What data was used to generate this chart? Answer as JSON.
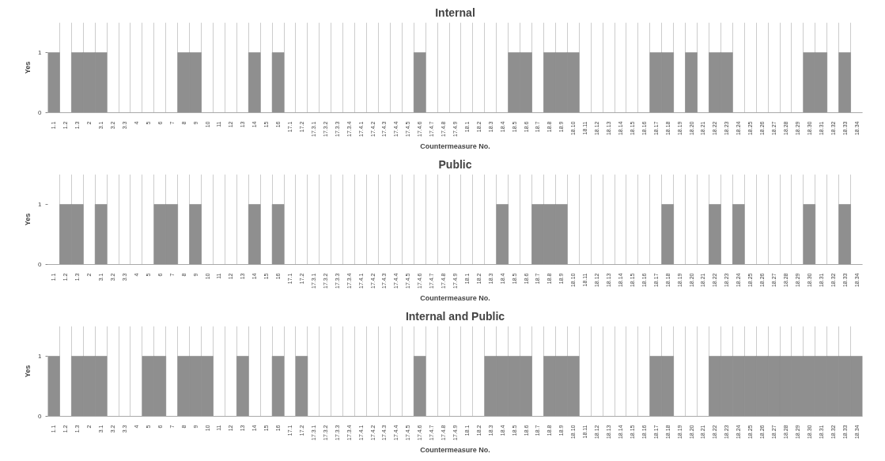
{
  "chart_data": [
    {
      "type": "bar",
      "title": "Internal",
      "xlabel": "Countermeasure No.",
      "ylabel": "Yes",
      "color": "#8f8f8f",
      "ylim": [
        0,
        1.5
      ],
      "yticks": [
        0,
        1
      ],
      "grid": "x",
      "categories": [
        "1.1",
        "1.2",
        "1.3",
        "2",
        "3.1",
        "3.2",
        "3.3",
        "4",
        "5",
        "6",
        "7",
        "8",
        "9",
        "10",
        "11",
        "12",
        "13",
        "14",
        "15",
        "16",
        "17.1",
        "17.2",
        "17.3.1",
        "17.3.2",
        "17.3.3",
        "17.3.4",
        "17.4.1",
        "17.4.2",
        "17.4.3",
        "17.4.4",
        "17.4.5",
        "17.4.6",
        "17.4.7",
        "17.4.8",
        "17.4.9",
        "18.1",
        "18.2",
        "18.3",
        "18.4",
        "18.5",
        "18.6",
        "18.7",
        "18.8",
        "18.9",
        "18.10",
        "18.11",
        "18.12",
        "18.13",
        "18.14",
        "18.15",
        "18.16",
        "18.17",
        "18.18",
        "18.19",
        "18.20",
        "18.21",
        "18.22",
        "18.23",
        "18.24",
        "18.25",
        "18.26",
        "18.27",
        "18.28",
        "18.29",
        "18.30",
        "18.31",
        "18.32",
        "18.33",
        "18.34"
      ],
      "values": [
        1,
        0,
        1,
        1,
        1,
        0,
        0,
        0,
        0,
        0,
        0,
        1,
        1,
        0,
        0,
        0,
        0,
        1,
        0,
        1,
        0,
        0,
        0,
        0,
        0,
        0,
        0,
        0,
        0,
        0,
        0,
        1,
        0,
        0,
        0,
        0,
        0,
        0,
        0,
        1,
        1,
        0,
        1,
        1,
        1,
        0,
        0,
        0,
        0,
        0,
        0,
        1,
        1,
        0,
        1,
        0,
        1,
        1,
        0,
        0,
        0,
        0,
        0,
        0,
        1,
        1,
        0,
        1,
        0
      ]
    },
    {
      "type": "bar",
      "title": "Public",
      "xlabel": "Countermeasure No.",
      "ylabel": "Yes",
      "color": "#8f8f8f",
      "ylim": [
        0,
        1.5
      ],
      "yticks": [
        0,
        1
      ],
      "grid": "x",
      "categories": [
        "1.1",
        "1.2",
        "1.3",
        "2",
        "3.1",
        "3.2",
        "3.3",
        "4",
        "5",
        "6",
        "7",
        "8",
        "9",
        "10",
        "11",
        "12",
        "13",
        "14",
        "15",
        "16",
        "17.1",
        "17.2",
        "17.3.1",
        "17.3.2",
        "17.3.3",
        "17.3.4",
        "17.4.1",
        "17.4.2",
        "17.4.3",
        "17.4.4",
        "17.4.5",
        "17.4.6",
        "17.4.7",
        "17.4.8",
        "17.4.9",
        "18.1",
        "18.2",
        "18.3",
        "18.4",
        "18.5",
        "18.6",
        "18.7",
        "18.8",
        "18.9",
        "18.10",
        "18.11",
        "18.12",
        "18.13",
        "18.14",
        "18.15",
        "18.16",
        "18.17",
        "18.18",
        "18.19",
        "18.20",
        "18.21",
        "18.22",
        "18.23",
        "18.24",
        "18.25",
        "18.26",
        "18.27",
        "18.28",
        "18.29",
        "18.30",
        "18.31",
        "18.32",
        "18.33",
        "18.34"
      ],
      "values": [
        0,
        1,
        1,
        0,
        1,
        0,
        0,
        0,
        0,
        1,
        1,
        0,
        1,
        0,
        0,
        0,
        0,
        1,
        0,
        1,
        0,
        0,
        0,
        0,
        0,
        0,
        0,
        0,
        0,
        0,
        0,
        0,
        0,
        0,
        0,
        0,
        0,
        0,
        1,
        0,
        0,
        1,
        1,
        1,
        0,
        0,
        0,
        0,
        0,
        0,
        0,
        0,
        1,
        0,
        0,
        0,
        1,
        0,
        1,
        0,
        0,
        0,
        0,
        0,
        1,
        0,
        0,
        1,
        0
      ]
    },
    {
      "type": "bar",
      "title": "Internal and Public",
      "xlabel": "Countermeasure No.",
      "ylabel": "Yes",
      "color": "#8f8f8f",
      "ylim": [
        0,
        1.5
      ],
      "yticks": [
        0,
        1
      ],
      "grid": "x",
      "categories": [
        "1.1",
        "1.2",
        "1.3",
        "2",
        "3.1",
        "3.2",
        "3.3",
        "4",
        "5",
        "6",
        "7",
        "8",
        "9",
        "10",
        "11",
        "12",
        "13",
        "14",
        "15",
        "16",
        "17.1",
        "17.2",
        "17.3.1",
        "17.3.2",
        "17.3.3",
        "17.3.4",
        "17.4.1",
        "17.4.2",
        "17.4.3",
        "17.4.4",
        "17.4.5",
        "17.4.6",
        "17.4.7",
        "17.4.8",
        "17.4.9",
        "18.1",
        "18.2",
        "18.3",
        "18.4",
        "18.5",
        "18.6",
        "18.7",
        "18.8",
        "18.9",
        "18.10",
        "18.11",
        "18.12",
        "18.13",
        "18.14",
        "18.15",
        "18.16",
        "18.17",
        "18.18",
        "18.19",
        "18.20",
        "18.21",
        "18.22",
        "18.23",
        "18.24",
        "18.25",
        "18.26",
        "18.27",
        "18.28",
        "18.29",
        "18.30",
        "18.31",
        "18.32",
        "18.33",
        "18.34"
      ],
      "values": [
        1,
        0,
        1,
        1,
        1,
        0,
        0,
        0,
        1,
        1,
        0,
        1,
        1,
        1,
        0,
        0,
        1,
        0,
        0,
        1,
        0,
        1,
        0,
        0,
        0,
        0,
        0,
        0,
        0,
        0,
        0,
        1,
        0,
        0,
        0,
        0,
        0,
        1,
        1,
        1,
        1,
        0,
        1,
        1,
        1,
        0,
        0,
        0,
        0,
        0,
        0,
        1,
        1,
        0,
        0,
        0,
        1,
        1,
        1,
        1,
        1,
        1,
        1,
        1,
        1,
        1,
        1,
        1,
        1
      ]
    }
  ]
}
